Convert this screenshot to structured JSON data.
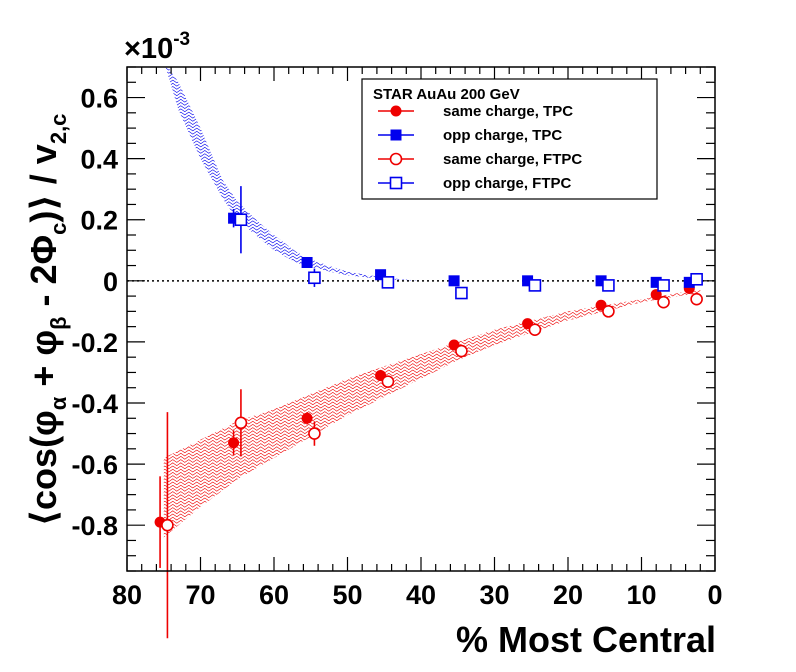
{
  "chart_data": {
    "type": "scatter",
    "title": "",
    "xlabel": "% Most Central",
    "ylabel": "⟨cos(φα + φβ - 2Φc)⟩ / v2,c",
    "ylabel_parts": {
      "pre": "⟨cos(φ",
      "sub_a": "α",
      "mid1": " + φ",
      "sub_b": "β",
      "mid2": " - 2Φ",
      "sub_c": "c",
      "post": ")⟩ / v",
      "sub_v": "2,c"
    },
    "y_multiplier": "×10",
    "y_multiplier_exp": "-3",
    "x_reversed": true,
    "xlim": [
      80,
      0
    ],
    "ylim": [
      -0.95,
      0.7
    ],
    "x_ticks": [
      "80",
      "70",
      "60",
      "50",
      "40",
      "30",
      "20",
      "10",
      "0"
    ],
    "y_ticks": [
      "0.6",
      "0.4",
      "0.2",
      "0",
      "-0.2",
      "-0.4",
      "-0.6",
      "-0.8"
    ],
    "grid": false,
    "legend_position": "top-right",
    "legend_title": "STAR  AuAu 200 GeV",
    "colors": {
      "red": "#ee0000",
      "blue": "#0000ee"
    },
    "series": [
      {
        "name": "same charge, TPC",
        "color": "#ee0000",
        "marker": "filled-circle",
        "x": [
          75.5,
          65.5,
          55.5,
          45.5,
          35.5,
          25.5,
          15.5,
          8.0,
          3.5
        ],
        "y": [
          -0.79,
          -0.53,
          -0.45,
          -0.31,
          -0.21,
          -0.14,
          -0.08,
          -0.045,
          -0.025
        ],
        "yerr": [
          0.15,
          0.04,
          0.02,
          0.01,
          0.01,
          0.01,
          0.01,
          0.01,
          0.01
        ]
      },
      {
        "name": "opp charge, TPC",
        "color": "#0000ee",
        "marker": "filled-square",
        "x": [
          65.5,
          55.5,
          45.5,
          35.5,
          25.5,
          15.5,
          8.0,
          3.5
        ],
        "y": [
          0.205,
          0.06,
          0.02,
          0.0,
          0.0,
          0.0,
          -0.005,
          -0.005
        ],
        "yerr": [
          0.03,
          0.01,
          0.01,
          0.005,
          0.005,
          0.005,
          0.005,
          0.005
        ]
      },
      {
        "name": "same charge, FTPC",
        "color": "#ee0000",
        "marker": "open-circle",
        "x": [
          74.5,
          64.5,
          54.5,
          44.5,
          34.5,
          24.5,
          14.5,
          7.0,
          2.5
        ],
        "y": [
          -0.8,
          -0.465,
          -0.5,
          -0.33,
          -0.23,
          -0.16,
          -0.1,
          -0.07,
          -0.06
        ],
        "yerr": [
          0.37,
          0.11,
          0.04,
          0.02,
          0.01,
          0.01,
          0.01,
          0.01,
          0.01
        ]
      },
      {
        "name": "opp charge, FTPC",
        "color": "#0000ee",
        "marker": "open-square",
        "x": [
          64.5,
          54.5,
          44.5,
          34.5,
          24.5,
          14.5,
          7.0,
          2.5
        ],
        "y": [
          0.2,
          0.01,
          -0.005,
          -0.04,
          -0.015,
          -0.015,
          -0.015,
          0.005
        ],
        "yerr": [
          0.11,
          0.03,
          0.01,
          0.01,
          0.01,
          0.01,
          0.01,
          0.01
        ]
      }
    ],
    "bands": [
      {
        "color": "#ee0000",
        "x": [
          75,
          70,
          65,
          60,
          55,
          50,
          45,
          40,
          35,
          30,
          25,
          20,
          15,
          10,
          5,
          2
        ],
        "upper": [
          -0.58,
          -0.52,
          -0.46,
          -0.42,
          -0.37,
          -0.32,
          -0.28,
          -0.24,
          -0.2,
          -0.16,
          -0.13,
          -0.1,
          -0.08,
          -0.06,
          -0.04,
          -0.03
        ],
        "lower": [
          -0.84,
          -0.74,
          -0.65,
          -0.58,
          -0.51,
          -0.44,
          -0.38,
          -0.32,
          -0.26,
          -0.21,
          -0.17,
          -0.13,
          -0.1,
          -0.07,
          -0.05,
          -0.04
        ]
      },
      {
        "color": "#0000ee",
        "x": [
          75,
          73,
          70,
          67,
          65,
          62,
          60,
          57,
          55,
          52,
          50,
          47,
          45,
          42,
          40
        ],
        "upper": [
          0.72,
          0.65,
          0.5,
          0.33,
          0.26,
          0.19,
          0.15,
          0.095,
          0.07,
          0.045,
          0.03,
          0.018,
          0.01,
          0.004,
          0.0
        ],
        "lower": [
          0.72,
          0.56,
          0.4,
          0.27,
          0.2,
          0.14,
          0.1,
          0.06,
          0.045,
          0.028,
          0.018,
          0.01,
          0.005,
          0.002,
          0.0
        ]
      }
    ]
  }
}
